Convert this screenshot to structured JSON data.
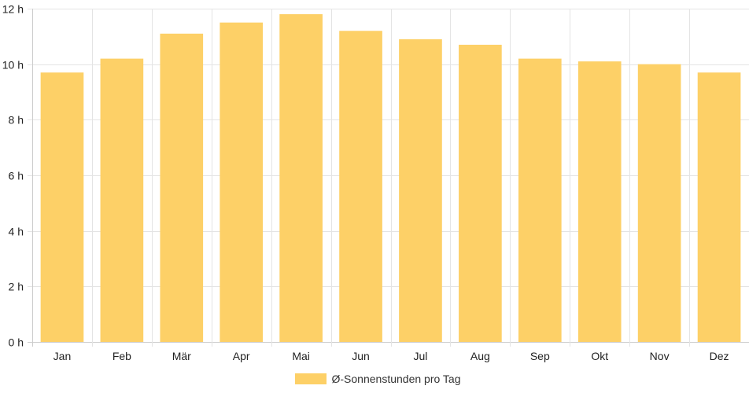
{
  "colors": {
    "bar": "#fdd067",
    "grid": "#e4e4e4",
    "axis": "#cccccc",
    "text": "#222222"
  },
  "chart_data": {
    "type": "bar",
    "categories": [
      "Jan",
      "Feb",
      "Mär",
      "Apr",
      "Mai",
      "Jun",
      "Jul",
      "Aug",
      "Sep",
      "Okt",
      "Nov",
      "Dez"
    ],
    "series": [
      {
        "name": "Ø-Sonnenstunden pro Tag",
        "values": [
          9.7,
          10.2,
          11.1,
          11.5,
          11.8,
          11.2,
          10.9,
          10.7,
          10.2,
          10.1,
          10.0,
          9.7
        ]
      }
    ],
    "y_ticks": [
      0,
      2,
      4,
      6,
      8,
      10,
      12
    ],
    "y_unit": "h",
    "ylim": [
      0,
      12
    ],
    "grid": true,
    "legend_position": "bottom"
  }
}
